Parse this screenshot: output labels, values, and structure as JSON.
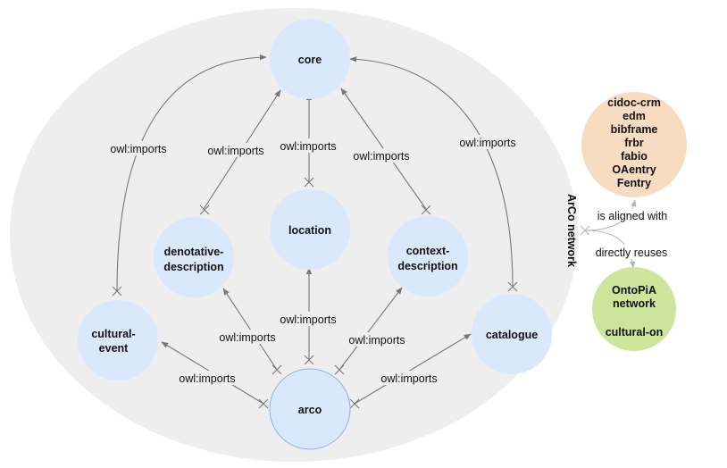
{
  "network_title": "ArCo network",
  "edge_label": "owl:imports",
  "nodes": {
    "core": {
      "label": "core"
    },
    "location": {
      "label": "location"
    },
    "denotative": {
      "line1": "denotative-",
      "line2": "description"
    },
    "context": {
      "line1": "context-",
      "line2": "description"
    },
    "cultural_event": {
      "line1": "cultural-",
      "line2": "event"
    },
    "catalogue": {
      "label": "catalogue"
    },
    "arco": {
      "label": "arco"
    }
  },
  "aligned": {
    "items": [
      "cidoc-crm",
      "edm",
      "bibframe",
      "frbr",
      "fabio",
      "OAentry",
      "Fentry"
    ],
    "relation": "is aligned with"
  },
  "reused": {
    "items": [
      "OntoPiA",
      "network",
      "",
      "cultural-on"
    ],
    "relation": "directly reuses"
  },
  "colors": {
    "network_bg": "#eeeeee",
    "node_fill": "#dae8fc",
    "arco_stroke": "#8fb1e0",
    "aligned_fill": "#f8dcc2",
    "reused_fill": "#cde49b",
    "edge": "#777777",
    "side_edge": "#b5b5b5"
  }
}
